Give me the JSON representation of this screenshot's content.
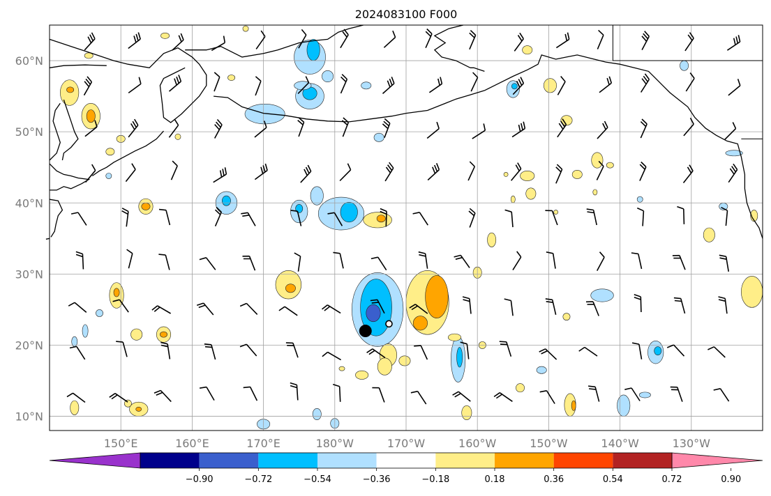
{
  "title": "2024083100 F000",
  "map": {
    "lon_ticks": [
      "150°E",
      "160°E",
      "170°E",
      "180°W",
      "170°W",
      "160°W",
      "150°W",
      "140°W",
      "130°W"
    ],
    "lat_ticks": [
      "60°N",
      "50°N",
      "40°N",
      "30°N",
      "20°N",
      "10°N"
    ],
    "grid": true,
    "projection": "plate carree",
    "land_outline_color": "#000000"
  },
  "colorbar": {
    "levels": [
      "−0.90",
      "−0.72",
      "−0.54",
      "−0.36",
      "−0.18",
      "0.18",
      "0.36",
      "0.54",
      "0.72",
      "0.90"
    ],
    "colors": [
      "#9932cc",
      "#00008b",
      "#3a5fcd",
      "#00bfff",
      "#b0e0ff",
      "#ffffff",
      "#ffee88",
      "#ffa500",
      "#ff4500",
      "#b22222",
      "#ff88aa"
    ],
    "extend": "both"
  },
  "storm_markers": [
    {
      "name": "filled-circle",
      "lon": 184.3,
      "lat": 22
    },
    {
      "name": "open-circle",
      "lon": 187.6,
      "lat": 23
    }
  ]
}
